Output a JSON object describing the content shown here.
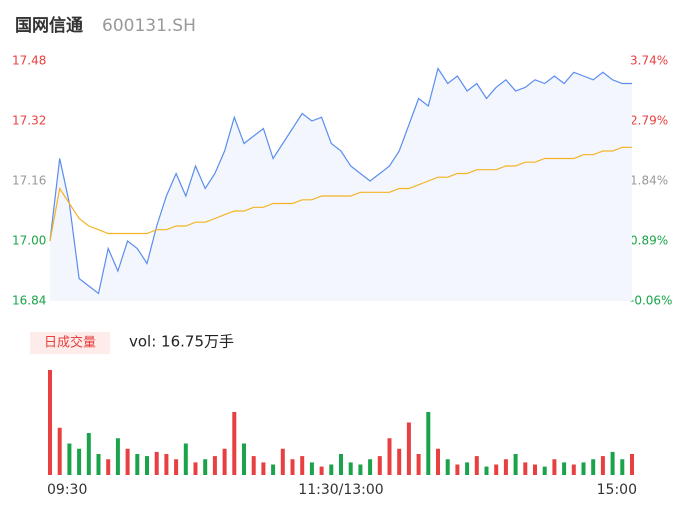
{
  "header": {
    "name": "国网信通",
    "code": "600131.SH"
  },
  "chart_data": [
    {
      "type": "line",
      "x": [
        0,
        4,
        8,
        12,
        16,
        20,
        24,
        28,
        32,
        36,
        40,
        44,
        48,
        52,
        56,
        60,
        64,
        68,
        72,
        76,
        80,
        84,
        88,
        92,
        96,
        100,
        104,
        108,
        112,
        116,
        120,
        124,
        128,
        132,
        136,
        140,
        144,
        148,
        152,
        156,
        160,
        164,
        168,
        172,
        176,
        180,
        184,
        188,
        192,
        196,
        200,
        204,
        208,
        212,
        216,
        220,
        224,
        228,
        232,
        236,
        240
      ],
      "xlim": [
        0,
        240
      ],
      "series": [
        {
          "name": "price",
          "color": "#5b8def",
          "fill": "#f3f6fd",
          "values": [
            17.0,
            17.22,
            17.1,
            16.9,
            16.88,
            16.86,
            16.98,
            16.92,
            17.0,
            16.98,
            16.94,
            17.04,
            17.12,
            17.18,
            17.12,
            17.2,
            17.14,
            17.18,
            17.24,
            17.33,
            17.26,
            17.28,
            17.3,
            17.22,
            17.26,
            17.3,
            17.34,
            17.32,
            17.33,
            17.26,
            17.24,
            17.2,
            17.18,
            17.16,
            17.18,
            17.2,
            17.24,
            17.31,
            17.38,
            17.36,
            17.46,
            17.42,
            17.44,
            17.4,
            17.42,
            17.38,
            17.41,
            17.43,
            17.4,
            17.41,
            17.43,
            17.42,
            17.44,
            17.42,
            17.45,
            17.44,
            17.43,
            17.45,
            17.43,
            17.42,
            17.42
          ]
        },
        {
          "name": "average",
          "color": "#f5b325",
          "values": [
            17.0,
            17.14,
            17.1,
            17.06,
            17.04,
            17.03,
            17.02,
            17.02,
            17.02,
            17.02,
            17.02,
            17.03,
            17.03,
            17.04,
            17.04,
            17.05,
            17.05,
            17.06,
            17.07,
            17.08,
            17.08,
            17.09,
            17.09,
            17.1,
            17.1,
            17.1,
            17.11,
            17.11,
            17.12,
            17.12,
            17.12,
            17.12,
            17.13,
            17.13,
            17.13,
            17.13,
            17.14,
            17.14,
            17.15,
            17.16,
            17.17,
            17.17,
            17.18,
            17.18,
            17.19,
            17.19,
            17.19,
            17.2,
            17.2,
            17.21,
            17.21,
            17.22,
            17.22,
            17.22,
            17.22,
            17.23,
            17.23,
            17.24,
            17.24,
            17.25,
            17.25
          ]
        }
      ],
      "ylim": [
        16.84,
        17.48
      ],
      "yticks": [
        16.84,
        {
          "value": 17,
          "label": "17.00"
        },
        17.16,
        17.32,
        17.48
      ],
      "y2lim": [
        -0.06,
        3.74
      ],
      "y2ticks": [
        {
          "value": -0.06,
          "label": "-0.06%"
        },
        {
          "value": 0.89,
          "label": "0.89%"
        },
        {
          "value": 1.84,
          "label": "1.84%"
        },
        {
          "value": 2.79,
          "label": "2.79%"
        },
        {
          "value": 3.74,
          "label": "3.74%"
        }
      ],
      "tick_colors": [
        "#1aa34a",
        "#1aa34a",
        "#999999",
        "#e84040",
        "#e84040"
      ]
    },
    {
      "type": "bar",
      "label": "日成交量",
      "annotation": "vol: 16.75万手",
      "values": [
        100,
        45,
        30,
        25,
        40,
        20,
        15,
        35,
        25,
        20,
        18,
        22,
        20,
        15,
        30,
        12,
        15,
        18,
        25,
        60,
        30,
        18,
        12,
        10,
        25,
        15,
        18,
        12,
        8,
        10,
        20,
        12,
        10,
        15,
        18,
        35,
        25,
        50,
        20,
        60,
        25,
        15,
        10,
        12,
        18,
        8,
        10,
        15,
        20,
        12,
        10,
        8,
        15,
        12,
        10,
        12,
        15,
        18,
        22,
        15,
        20
      ],
      "ylim": [
        0,
        100
      ],
      "up_color": "#e84040",
      "down_color": "#1aa34a",
      "xticks": [
        {
          "value": 0,
          "label": "09:30"
        },
        {
          "value": 120,
          "label": "11:30/13:00"
        },
        {
          "value": 240,
          "label": "15:00"
        }
      ]
    }
  ]
}
